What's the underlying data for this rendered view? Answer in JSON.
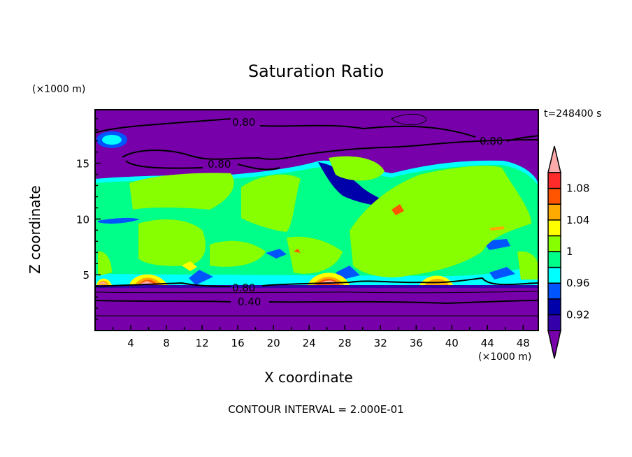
{
  "chart_data": {
    "type": "heatmap",
    "title": "Saturation Ratio",
    "xlabel": "X coordinate",
    "ylabel": "Z coordinate",
    "x_unit": "(×1000 m)",
    "z_unit": "(×1000 m)",
    "time_label": "t=248400 s",
    "footer": "CONTOUR INTERVAL = 2.000E-01",
    "xlim": [
      0,
      49.7
    ],
    "ylim": [
      0,
      19.8
    ],
    "x_ticks": [
      4,
      8,
      12,
      16,
      20,
      24,
      28,
      32,
      36,
      40,
      44,
      48
    ],
    "y_ticks": [
      5,
      10,
      15
    ],
    "contour_labels": [
      "0.80",
      "0.80",
      "0.80",
      "0.80",
      "0.40"
    ],
    "colorbar": {
      "levels": [
        0.9,
        0.92,
        0.94,
        0.96,
        0.98,
        1.0,
        1.02,
        1.04,
        1.06,
        1.08,
        1.1
      ],
      "tick_labels": [
        "0.92",
        "0.96",
        "1",
        "1.04",
        "1.08"
      ],
      "tick_values": [
        0.92,
        0.96,
        1.0,
        1.04,
        1.08
      ],
      "colors": [
        "#3300aa",
        "#0000aa",
        "#0055ff",
        "#00ffff",
        "#00ff88",
        "#88ff00",
        "#ffff00",
        "#ffaa00",
        "#ff5500",
        "#ff2a2a"
      ],
      "under_color": "#7700aa",
      "over_color": "#ffaaaa"
    }
  }
}
